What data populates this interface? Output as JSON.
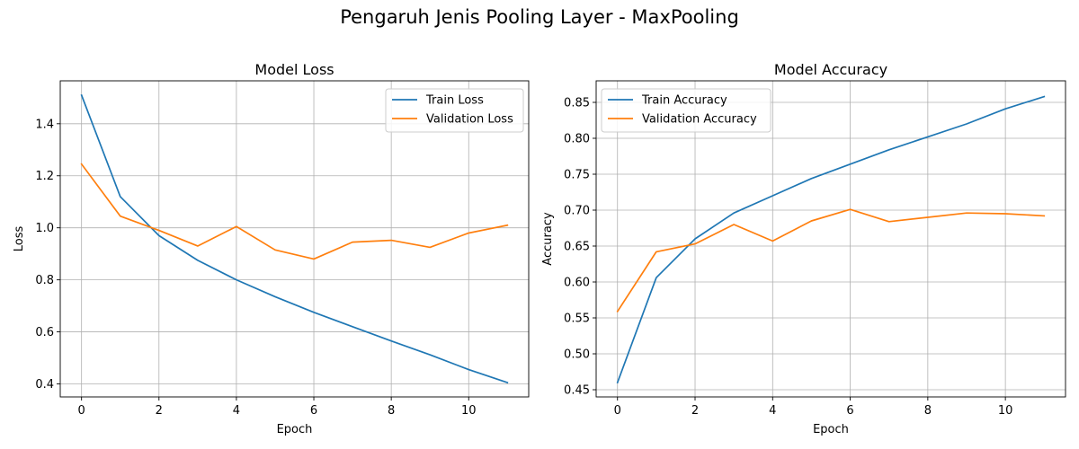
{
  "figure": {
    "title": "Pengaruh Jenis Pooling Layer - MaxPooling"
  },
  "chart_data": [
    {
      "type": "line",
      "title": "Model Loss",
      "xlabel": "Epoch",
      "ylabel": "Loss",
      "x": [
        0,
        1,
        2,
        3,
        4,
        5,
        6,
        7,
        8,
        9,
        10,
        11
      ],
      "xlim": [
        -0.55,
        11.55
      ],
      "ylim": [
        0.35,
        1.565
      ],
      "xticks": [
        0,
        2,
        4,
        6,
        8,
        10
      ],
      "yticks": [
        0.4,
        0.6,
        0.8,
        1.0,
        1.2,
        1.4
      ],
      "ytick_decimals": 1,
      "grid": true,
      "legend_position": "upper right",
      "series": [
        {
          "name": "Train Loss",
          "color": "#1f77b4",
          "values": [
            1.51,
            1.12,
            0.97,
            0.875,
            0.8,
            0.735,
            0.675,
            0.62,
            0.565,
            0.512,
            0.455,
            0.405
          ]
        },
        {
          "name": "Validation Loss",
          "color": "#ff7f0e",
          "values": [
            1.245,
            1.045,
            0.99,
            0.93,
            1.005,
            0.915,
            0.88,
            0.945,
            0.952,
            0.925,
            0.98,
            1.01
          ]
        }
      ]
    },
    {
      "type": "line",
      "title": "Model Accuracy",
      "xlabel": "Epoch",
      "ylabel": "Accuracy",
      "x": [
        0,
        1,
        2,
        3,
        4,
        5,
        6,
        7,
        8,
        9,
        10,
        11
      ],
      "xlim": [
        -0.55,
        11.55
      ],
      "ylim": [
        0.44,
        0.88
      ],
      "xticks": [
        0,
        2,
        4,
        6,
        8,
        10
      ],
      "yticks": [
        0.45,
        0.5,
        0.55,
        0.6,
        0.65,
        0.7,
        0.75,
        0.8,
        0.85
      ],
      "ytick_decimals": 2,
      "grid": true,
      "legend_position": "upper left",
      "series": [
        {
          "name": "Train Accuracy",
          "color": "#1f77b4",
          "values": [
            0.46,
            0.606,
            0.66,
            0.696,
            0.72,
            0.744,
            0.764,
            0.784,
            0.802,
            0.82,
            0.841,
            0.858
          ]
        },
        {
          "name": "Validation Accuracy",
          "color": "#ff7f0e",
          "values": [
            0.559,
            0.642,
            0.653,
            0.68,
            0.657,
            0.685,
            0.701,
            0.684,
            0.69,
            0.696,
            0.695,
            0.692
          ]
        }
      ]
    }
  ]
}
